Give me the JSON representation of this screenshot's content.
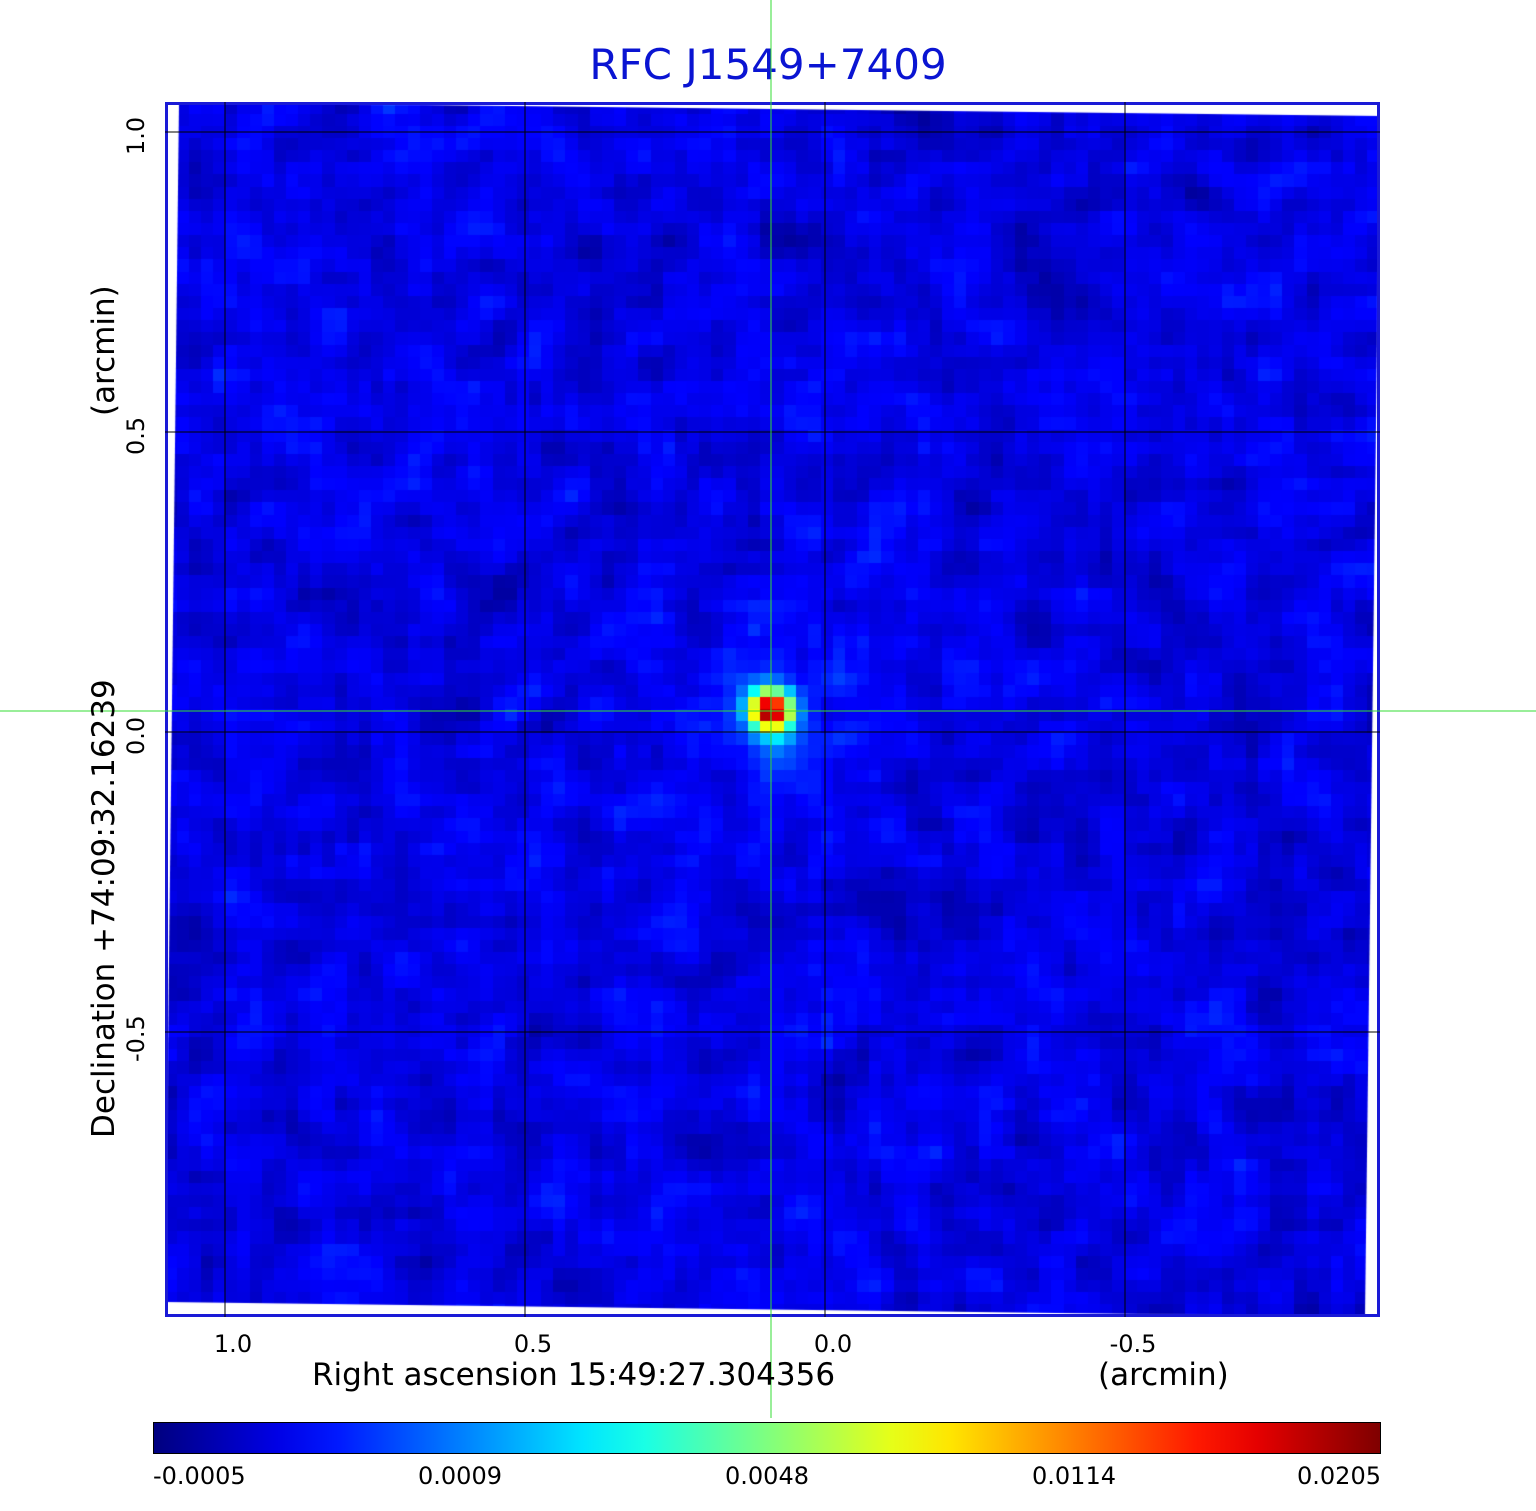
{
  "title": "RFC J1549+7409",
  "x_axis": {
    "label": "Right ascension  15:49:27.304356",
    "unit": "(arcmin)",
    "ticks": [
      "1.0",
      "0.5",
      "0.0",
      "-0.5"
    ],
    "tick_values": [
      1.0,
      0.5,
      0.0,
      -0.5
    ],
    "range": [
      1.1,
      -0.925
    ]
  },
  "y_axis": {
    "label": "Declination  +74:09:32.16239",
    "unit": "(arcmin)",
    "ticks": [
      "1.0",
      "0.5",
      "0.0",
      "-0.5"
    ],
    "tick_values": [
      1.0,
      0.5,
      0.0,
      -0.5
    ],
    "range": [
      -0.975,
      1.05
    ]
  },
  "colorbar": {
    "ticks": [
      "-0.0005",
      "0.0009",
      "0.0048",
      "0.0114",
      "0.0205"
    ],
    "colormap": "jet"
  },
  "source": {
    "x_arcmin": 0.09,
    "y_arcmin": 0.035
  },
  "colors": {
    "title": "#0a14d2",
    "frame": "#1a1ad6",
    "grid": "#000000",
    "crosshair": "#33dd33"
  }
}
